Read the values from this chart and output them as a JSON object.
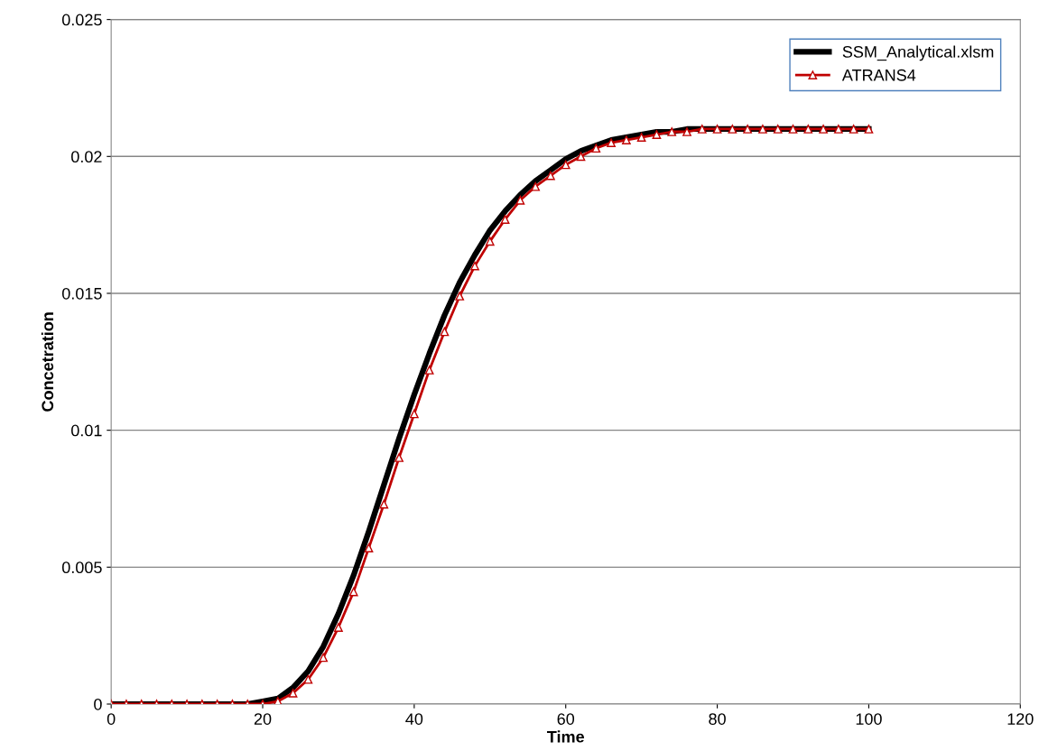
{
  "chart_data": {
    "type": "line",
    "xlabel": "Time",
    "ylabel": "Concetration",
    "xlim": [
      0,
      120
    ],
    "xticks": [
      0,
      20,
      40,
      60,
      80,
      100,
      120
    ],
    "ylim": [
      0,
      0.025
    ],
    "yticks": [
      {
        "value": 0,
        "label": "0"
      },
      {
        "value": 0.005,
        "label": "0.005"
      },
      {
        "value": 0.01,
        "label": "0.01"
      },
      {
        "value": 0.015,
        "label": "0.015"
      },
      {
        "value": 0.02,
        "label": "0.02"
      },
      {
        "value": 0.025,
        "label": "0.025"
      }
    ],
    "grid": "y",
    "legend": "top right",
    "line_style": "solid",
    "x": [
      0,
      2,
      4,
      6,
      8,
      10,
      12,
      14,
      16,
      18,
      20,
      22,
      24,
      26,
      28,
      30,
      32,
      34,
      36,
      38,
      40,
      42,
      44,
      46,
      48,
      50,
      52,
      54,
      56,
      58,
      60,
      62,
      64,
      66,
      68,
      70,
      72,
      74,
      76,
      78,
      80,
      82,
      84,
      86,
      88,
      90,
      92,
      94,
      96,
      98,
      100
    ],
    "series": [
      {
        "name": "SSM_Analytical.xlsm",
        "color": "#000000",
        "marker": "none",
        "values": [
          0,
          0,
          0,
          0,
          0,
          0,
          0,
          0,
          0,
          0,
          0.0001,
          0.0002,
          0.0006,
          0.0012,
          0.0021,
          0.0033,
          0.0047,
          0.0063,
          0.008,
          0.0097,
          0.0113,
          0.0128,
          0.0142,
          0.0154,
          0.0164,
          0.0173,
          0.018,
          0.0186,
          0.0191,
          0.0195,
          0.0199,
          0.0202,
          0.0204,
          0.0206,
          0.0207,
          0.0208,
          0.0209,
          0.0209,
          0.021,
          0.021,
          0.021,
          0.021,
          0.021,
          0.021,
          0.021,
          0.021,
          0.021,
          0.021,
          0.021,
          0.021,
          0.021
        ]
      },
      {
        "name": "ATRANS4",
        "color": "#c00000",
        "marker": "triangle",
        "values": [
          0,
          0,
          0,
          0,
          0,
          0,
          0,
          0,
          0,
          0,
          0,
          0.0001,
          0.0004,
          0.0009,
          0.0017,
          0.0028,
          0.0041,
          0.0057,
          0.0073,
          0.009,
          0.0106,
          0.0122,
          0.0136,
          0.0149,
          0.016,
          0.0169,
          0.0177,
          0.0184,
          0.0189,
          0.0193,
          0.0197,
          0.02,
          0.0203,
          0.0205,
          0.0206,
          0.0207,
          0.0208,
          0.0209,
          0.0209,
          0.021,
          0.021,
          0.021,
          0.021,
          0.021,
          0.021,
          0.021,
          0.021,
          0.021,
          0.021,
          0.021,
          0.021
        ]
      }
    ]
  }
}
